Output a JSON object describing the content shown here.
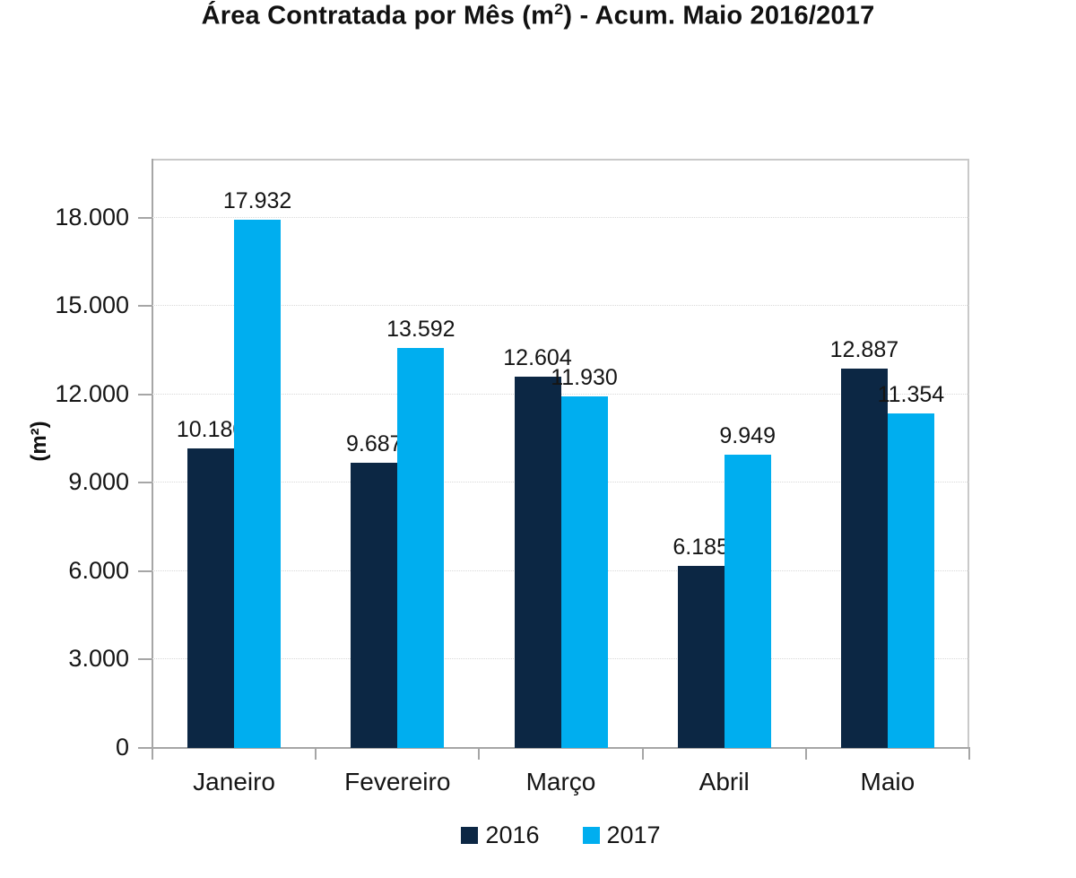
{
  "title": {
    "pre": "Área Contratada por Mês (m",
    "sup": "2",
    "post": ") - Acum. Maio 2016/2017"
  },
  "colors": {
    "series_2016": "#0c2744",
    "series_2017": "#00aeef",
    "plot_border": "#c9c9c9",
    "axis_line": "#a6a6a6",
    "gridline": "#d9d9d9",
    "text": "#151515"
  },
  "chart_data": {
    "type": "bar",
    "title": "Área Contratada por Mês (m²) - Acum. Maio 2016/2017",
    "xlabel": "",
    "ylabel": "(m²)",
    "categories": [
      "Janeiro",
      "Fevereiro",
      "Março",
      "Abril",
      "Maio"
    ],
    "series": [
      {
        "name": "2016",
        "color": "#0c2744",
        "values": [
          10180,
          9687,
          12604,
          6185,
          12887
        ],
        "value_labels": [
          "10.180",
          "9.687",
          "12.604",
          "6.185",
          "12.887"
        ]
      },
      {
        "name": "2017",
        "color": "#00aeef",
        "values": [
          17932,
          13592,
          11930,
          9949,
          11354
        ],
        "value_labels": [
          "17.932",
          "13.592",
          "11.930",
          "9.949",
          "11.354"
        ]
      }
    ],
    "yticks": [
      {
        "value": 0,
        "label": "0"
      },
      {
        "value": 3000,
        "label": "3.000"
      },
      {
        "value": 6000,
        "label": "6.000"
      },
      {
        "value": 9000,
        "label": "9.000"
      },
      {
        "value": 12000,
        "label": "12.000"
      },
      {
        "value": 15000,
        "label": "15.000"
      },
      {
        "value": 18000,
        "label": "18.000"
      }
    ],
    "ylim": [
      0,
      20000
    ],
    "grid": "horizontal-dotted",
    "legend_position": "bottom",
    "legend_entries": [
      "2016",
      "2017"
    ]
  }
}
